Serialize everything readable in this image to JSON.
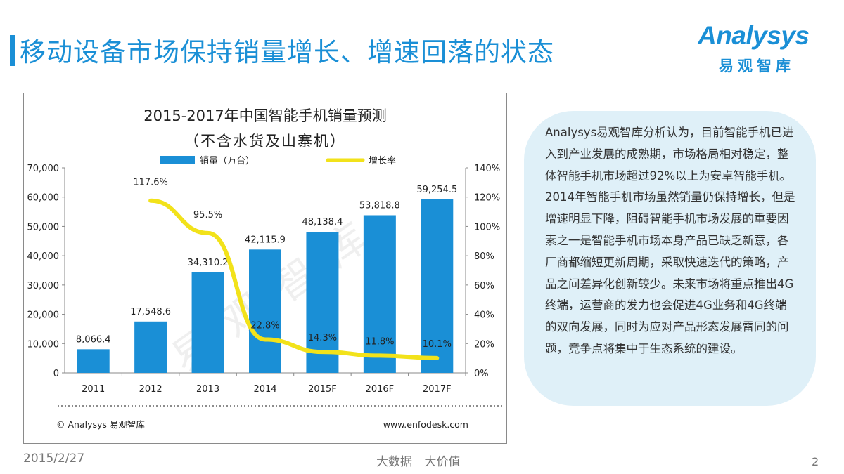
{
  "page": {
    "title": "移动设备市场保持销量增长、增速回落的状态",
    "logo_text": "Analysys",
    "logo_sub": "易观智库",
    "date": "2015/2/27",
    "slogan": "大数据  大价值",
    "page_number": "2"
  },
  "summary": "Analysys易观智库分析认为，目前智能手机已进入到产业发展的成熟期，市场格局相对稳定，整体智能手机市场超过92%以上为安卓智能手机。2014年智能手机市场虽然销量仍保持增长，但是增速明显下降，阻碍智能手机市场发展的重要因素之一是智能手机市场本身产品已缺乏新意，各厂商都缩短更新周期，采取快速迭代的策略，产品之间差异化创新较少。未来市场将重点推出4G终端，运营商的发力也会促进4G业务和4G终端的双向发展，同时为应对产品形态发展雷同的问题，竞争点将集中于生态系统的建设。",
  "watermark": "易观智库",
  "chart_data": {
    "type": "bar+line",
    "title": "2015-2017年中国智能手机销量预测",
    "subtitle": "（不含水货及山寨机）",
    "categories": [
      "2011",
      "2012",
      "2013",
      "2014",
      "2015F",
      "2016F",
      "2017F"
    ],
    "series": [
      {
        "name": "销量（万台）",
        "type": "bar",
        "axis": "left",
        "values": [
          8066.4,
          17548.6,
          34310.2,
          42115.9,
          48138.4,
          53818.8,
          59254.5
        ],
        "labels": [
          "8,066.4",
          "17,548.6",
          "34,310.2",
          "42,115.9",
          "48,138.4",
          "53,818.8",
          "59,254.5"
        ],
        "color": "#1a8fd6"
      },
      {
        "name": "增长率",
        "type": "line",
        "axis": "right",
        "values": [
          null,
          117.6,
          95.5,
          22.8,
          14.3,
          11.8,
          10.1
        ],
        "labels": [
          "",
          "117.6%",
          "95.5%",
          "22.8%",
          "14.3%",
          "11.8%",
          "10.1%"
        ],
        "color": "#f2e21a"
      }
    ],
    "y_left": {
      "min": 0,
      "max": 70000,
      "ticks": [
        "0",
        "10,000",
        "20,000",
        "30,000",
        "40,000",
        "50,000",
        "60,000",
        "70,000"
      ]
    },
    "y_right": {
      "min": 0,
      "max": 140,
      "ticks": [
        "0%",
        "20%",
        "40%",
        "60%",
        "80%",
        "100%",
        "120%",
        "140%"
      ]
    },
    "legend_position": "top",
    "source_left": "© Analysys 易观智库",
    "source_right": "www.enfodesk.com"
  }
}
